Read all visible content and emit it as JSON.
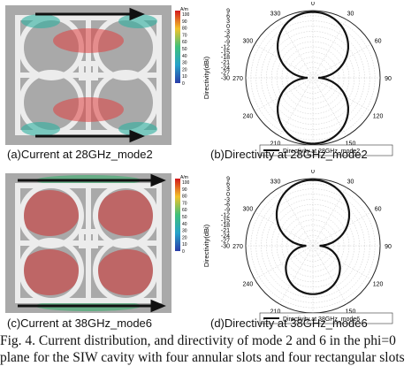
{
  "panels": {
    "a": {
      "caption": "(a)Current at 28GHz_mode2",
      "colorbar_unit": "A/m",
      "colorbar_labels": [
        "100",
        "90",
        "80",
        "70",
        "60",
        "50",
        "40",
        "30",
        "20",
        "10",
        "0"
      ]
    },
    "b": {
      "caption": "(b)Directivity at 28GHz_mode2",
      "legend": "Directivity at 28GHz_mode2"
    },
    "c": {
      "caption": "(c)Current at 38GHz_mode6",
      "colorbar_unit": "A/m",
      "colorbar_labels": [
        "100",
        "90",
        "80",
        "70",
        "60",
        "50",
        "40",
        "30",
        "20",
        "10",
        "0"
      ]
    },
    "d": {
      "caption": "(d)Directivity at 38GHz_mode6",
      "legend": "Directivity at 38GHz_mode6"
    }
  },
  "polar_axis": {
    "ylabel": "Directivity(dBi)",
    "radial_ticks": [
      "9",
      "6",
      "3",
      "0",
      "-3",
      "-6",
      "-9",
      "-12",
      "-15",
      "-18",
      "-21",
      "-24",
      "-27",
      "-30"
    ],
    "angle_labels": [
      "0",
      "30",
      "60",
      "90",
      "120",
      "150",
      "180",
      "210",
      "240",
      "270",
      "300",
      "330"
    ]
  },
  "figure_caption": {
    "line1": "Fig. 4. Current distribution, and directivity of mode 2 and 6 in the phi=0",
    "line2": "plane for the SIW cavity with four annular slots and four rectangular slots"
  },
  "colors": {
    "pattern": "#111111",
    "slot": "#e8e8e8",
    "cavity": "#a9a9a9"
  }
}
